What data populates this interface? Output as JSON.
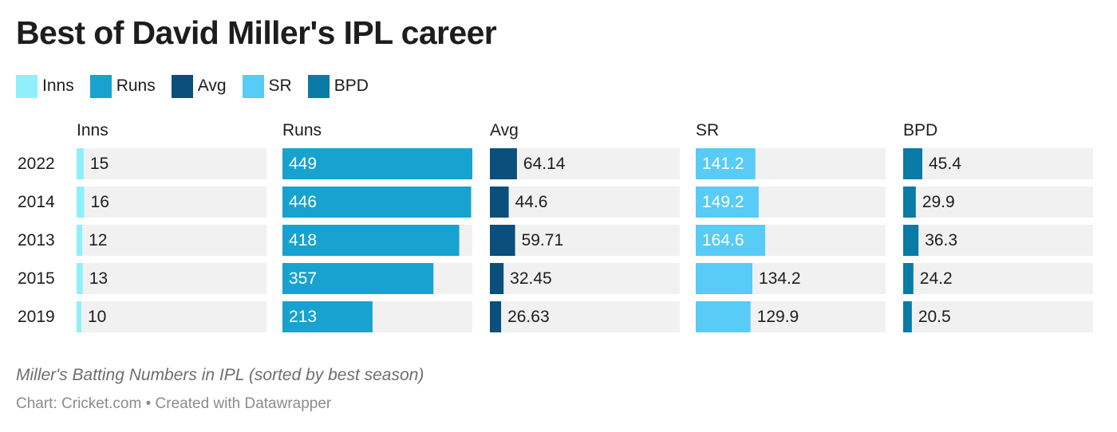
{
  "title": "Best of David Miller's IPL career",
  "legend": [
    {
      "label": "Inns",
      "color": "#8ff0fb"
    },
    {
      "label": "Runs",
      "color": "#17a2cf"
    },
    {
      "label": "Avg",
      "color": "#0b4f7d"
    },
    {
      "label": "SR",
      "color": "#58cbf7"
    },
    {
      "label": "BPD",
      "color": "#0a7aa6"
    }
  ],
  "chart_data": {
    "type": "bar",
    "orientation": "horizontal",
    "layout": "small-multiples",
    "categories": [
      "2022",
      "2014",
      "2013",
      "2015",
      "2019"
    ],
    "series": [
      {
        "name": "Inns",
        "color": "#8ff0fb",
        "max": 400,
        "values": [
          15,
          16,
          12,
          13,
          10
        ],
        "labels": [
          "15",
          "16",
          "12",
          "13",
          "10"
        ]
      },
      {
        "name": "Runs",
        "color": "#17a2cf",
        "max": 449,
        "values": [
          449,
          446,
          418,
          357,
          213
        ],
        "labels": [
          "449",
          "446",
          "418",
          "357",
          "213"
        ]
      },
      {
        "name": "Avg",
        "color": "#0b4f7d",
        "max": 450,
        "values": [
          64.14,
          44.6,
          59.71,
          32.45,
          26.63
        ],
        "labels": [
          "64.14",
          "44.6",
          "59.71",
          "32.45",
          "26.63"
        ]
      },
      {
        "name": "SR",
        "color": "#58cbf7",
        "max": 450,
        "values": [
          141.2,
          149.2,
          164.6,
          134.2,
          129.9
        ],
        "labels": [
          "141.2",
          "149.2",
          "164.6",
          "134.2",
          "129.9"
        ]
      },
      {
        "name": "BPD",
        "color": "#0a7aa6",
        "max": 450,
        "values": [
          45.4,
          29.9,
          36.3,
          24.2,
          20.5
        ],
        "labels": [
          "45.4",
          "29.9",
          "36.3",
          "24.2",
          "20.5"
        ]
      }
    ]
  },
  "description": "Miller's Batting Numbers in IPL (sorted by best season)",
  "footer": {
    "source_label": "Chart:",
    "source": "Cricket.com",
    "separator": "•",
    "credit": "Created with Datawrapper"
  },
  "colors": {
    "track": "#f1f1f1",
    "text_dark": "#1d1d1d",
    "text_light": "#ffffff",
    "description": "#6e6e6e",
    "footer": "#8c8c8c"
  }
}
